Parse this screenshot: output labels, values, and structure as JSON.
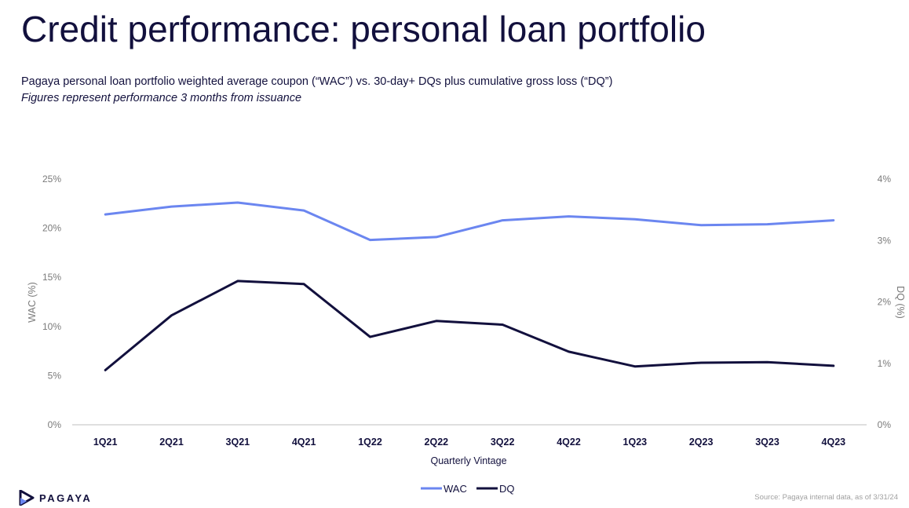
{
  "page": {
    "title": "Credit performance: personal loan portfolio",
    "subtitle": "Pagaya personal loan portfolio weighted average coupon (“WAC”) vs. 30-day+ DQs plus cumulative gross loss (“DQ”)",
    "note": "Figures represent performance 3 months from issuance",
    "logo_text": "PAGAYA",
    "source": "Source: Pagaya internal data, as of 3/31/24"
  },
  "colors": {
    "wac": "#6b86f0",
    "dq": "#12103d",
    "axis": "#bfbfbf"
  },
  "chart_data": {
    "type": "line",
    "xlabel": "Quarterly Vintage",
    "ylabel": "WAC (%)",
    "y2label": "DQ (%)",
    "categories": [
      "1Q21",
      "2Q21",
      "3Q21",
      "4Q21",
      "1Q22",
      "2Q22",
      "3Q22",
      "4Q22",
      "1Q23",
      "2Q23",
      "3Q23",
      "4Q23"
    ],
    "ylim": [
      0,
      25
    ],
    "y_ticks": [
      0,
      5,
      10,
      15,
      20,
      25
    ],
    "y_tick_labels": [
      "0%",
      "5%",
      "10%",
      "15%",
      "20%",
      "25%"
    ],
    "y2lim": [
      0,
      4
    ],
    "y2_ticks": [
      0,
      1,
      2,
      3,
      4
    ],
    "y2_tick_labels": [
      "0%",
      "1%",
      "2%",
      "3%",
      "4%"
    ],
    "grid": false,
    "legend": "bottom-center",
    "series": [
      {
        "name": "WAC",
        "axis": "left",
        "values": [
          21.4,
          22.2,
          22.6,
          21.8,
          18.8,
          19.1,
          20.8,
          21.2,
          20.9,
          20.3,
          20.4,
          20.8
        ]
      },
      {
        "name": "DQ",
        "axis": "right",
        "values": [
          0.89,
          1.78,
          2.34,
          2.29,
          1.43,
          1.69,
          1.63,
          1.19,
          0.95,
          1.01,
          1.02,
          0.96
        ]
      }
    ]
  }
}
